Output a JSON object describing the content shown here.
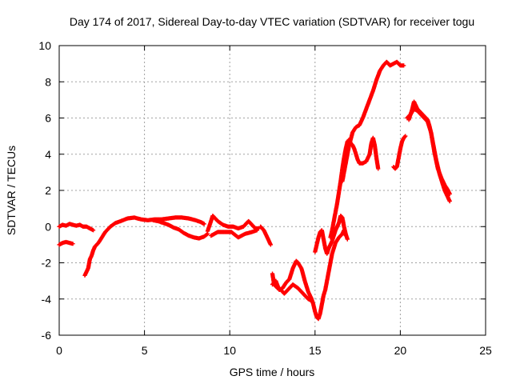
{
  "chart_data": {
    "type": "scatter",
    "title": "Day 174 of 2017, Sidereal Day-to-day VTEC variation (SDTVAR) for receiver togu",
    "xlabel": "GPS time / hours",
    "ylabel": "SDTVAR / TECUs",
    "xlim": [
      0,
      25
    ],
    "ylim": [
      -6,
      10
    ],
    "xticks": [
      0,
      5,
      10,
      15,
      20,
      25
    ],
    "yticks": [
      -6,
      -4,
      -2,
      0,
      2,
      4,
      6,
      8,
      10
    ],
    "grid": true,
    "marker": "plus",
    "color": "#ff0000",
    "segments": [
      [
        [
          0.0,
          -1.0
        ],
        [
          0.2,
          -0.9
        ],
        [
          0.4,
          -0.85
        ],
        [
          0.6,
          -0.9
        ],
        [
          0.8,
          -0.95
        ]
      ],
      [
        [
          0.0,
          0.0
        ],
        [
          0.2,
          0.1
        ],
        [
          0.4,
          0.05
        ],
        [
          0.6,
          0.15
        ],
        [
          0.8,
          0.1
        ],
        [
          1.0,
          0.05
        ],
        [
          1.2,
          0.1
        ],
        [
          1.4,
          0.0
        ],
        [
          1.6,
          0.0
        ],
        [
          1.8,
          -0.1
        ],
        [
          2.0,
          -0.2
        ]
      ],
      [
        [
          1.5,
          -2.7
        ],
        [
          1.6,
          -2.5
        ],
        [
          1.7,
          -2.3
        ],
        [
          1.8,
          -1.8
        ],
        [
          1.9,
          -1.6
        ],
        [
          2.0,
          -1.3
        ],
        [
          2.1,
          -1.1
        ],
        [
          2.3,
          -0.9
        ],
        [
          2.5,
          -0.6
        ],
        [
          2.7,
          -0.3
        ],
        [
          3.0,
          0.0
        ],
        [
          3.3,
          0.2
        ],
        [
          3.6,
          0.3
        ],
        [
          4.0,
          0.45
        ],
        [
          4.4,
          0.5
        ],
        [
          4.8,
          0.4
        ],
        [
          5.2,
          0.35
        ],
        [
          5.6,
          0.4
        ],
        [
          6.0,
          0.4
        ],
        [
          6.4,
          0.45
        ],
        [
          6.8,
          0.5
        ],
        [
          7.2,
          0.5
        ],
        [
          7.6,
          0.45
        ],
        [
          8.0,
          0.35
        ],
        [
          8.3,
          0.25
        ],
        [
          8.5,
          0.15
        ]
      ],
      [
        [
          5.5,
          0.35
        ],
        [
          5.8,
          0.3
        ],
        [
          6.1,
          0.2
        ],
        [
          6.4,
          0.1
        ],
        [
          6.7,
          -0.05
        ],
        [
          7.0,
          -0.15
        ],
        [
          7.3,
          -0.35
        ],
        [
          7.6,
          -0.5
        ],
        [
          7.9,
          -0.6
        ],
        [
          8.2,
          -0.65
        ],
        [
          8.5,
          -0.55
        ],
        [
          8.7,
          -0.4
        ]
      ],
      [
        [
          8.7,
          -0.25
        ],
        [
          8.9,
          0.3
        ],
        [
          9.0,
          0.6
        ],
        [
          9.1,
          0.5
        ],
        [
          9.3,
          0.3
        ],
        [
          9.6,
          0.1
        ],
        [
          9.9,
          0.0
        ],
        [
          10.2,
          0.0
        ],
        [
          10.5,
          -0.1
        ],
        [
          10.8,
          0.0
        ],
        [
          11.0,
          0.2
        ],
        [
          11.1,
          0.3
        ],
        [
          11.3,
          0.1
        ],
        [
          11.5,
          -0.1
        ],
        [
          11.7,
          -0.1
        ]
      ],
      [
        [
          8.9,
          -0.5
        ],
        [
          9.3,
          -0.3
        ],
        [
          9.7,
          -0.3
        ],
        [
          10.1,
          -0.3
        ],
        [
          10.5,
          -0.6
        ],
        [
          10.9,
          -0.4
        ],
        [
          11.3,
          -0.3
        ],
        [
          11.6,
          -0.2
        ]
      ],
      [
        [
          11.8,
          0.0
        ],
        [
          12.0,
          -0.2
        ],
        [
          12.2,
          -0.6
        ],
        [
          12.4,
          -1.0
        ]
      ],
      [
        [
          12.5,
          -2.6
        ],
        [
          12.6,
          -3.2
        ],
        [
          12.8,
          -3.4
        ],
        [
          13.0,
          -3.5
        ],
        [
          13.2,
          -3.7
        ],
        [
          13.5,
          -3.4
        ],
        [
          13.7,
          -3.2
        ],
        [
          14.0,
          -3.4
        ],
        [
          14.2,
          -3.6
        ],
        [
          14.4,
          -3.8
        ],
        [
          14.6,
          -4.0
        ],
        [
          14.8,
          -4.1
        ]
      ],
      [
        [
          12.5,
          -3.2
        ],
        [
          12.7,
          -3.0
        ],
        [
          12.9,
          -3.5
        ],
        [
          13.1,
          -3.4
        ],
        [
          13.3,
          -3.1
        ],
        [
          13.5,
          -2.9
        ],
        [
          13.6,
          -2.6
        ],
        [
          13.7,
          -2.3
        ],
        [
          13.8,
          -2.1
        ],
        [
          13.9,
          -1.9
        ],
        [
          14.0,
          -2.0
        ],
        [
          14.2,
          -2.3
        ],
        [
          14.4,
          -3.0
        ],
        [
          14.6,
          -3.6
        ],
        [
          14.8,
          -4.0
        ],
        [
          14.9,
          -4.3
        ],
        [
          15.0,
          -4.7
        ],
        [
          15.1,
          -5.0
        ],
        [
          15.2,
          -5.1
        ],
        [
          15.3,
          -4.8
        ],
        [
          15.4,
          -4.3
        ],
        [
          15.5,
          -3.8
        ],
        [
          15.6,
          -3.5
        ],
        [
          15.7,
          -3.0
        ],
        [
          15.8,
          -2.5
        ],
        [
          15.9,
          -2.0
        ],
        [
          16.0,
          -1.5
        ],
        [
          16.1,
          -1.2
        ],
        [
          16.2,
          -0.9
        ],
        [
          16.4,
          -0.6
        ],
        [
          16.6,
          -0.4
        ],
        [
          16.7,
          -0.2
        ],
        [
          16.8,
          -0.5
        ]
      ],
      [
        [
          15.0,
          -1.4
        ],
        [
          15.1,
          -1.0
        ],
        [
          15.2,
          -0.6
        ],
        [
          15.3,
          -0.3
        ],
        [
          15.4,
          -0.2
        ],
        [
          15.5,
          -0.7
        ],
        [
          15.6,
          -1.2
        ],
        [
          15.7,
          -1.5
        ],
        [
          15.8,
          -1.2
        ],
        [
          15.9,
          -1.0
        ],
        [
          16.0,
          -0.8
        ],
        [
          16.1,
          -0.5
        ],
        [
          16.2,
          -0.2
        ],
        [
          16.3,
          0.0
        ],
        [
          16.4,
          0.2
        ],
        [
          16.5,
          0.6
        ],
        [
          16.6,
          0.5
        ],
        [
          16.7,
          0.0
        ],
        [
          16.8,
          -0.4
        ],
        [
          16.9,
          -0.7
        ]
      ],
      [
        [
          15.9,
          -0.6
        ],
        [
          16.0,
          -0.2
        ],
        [
          16.1,
          0.3
        ],
        [
          16.2,
          0.8
        ],
        [
          16.3,
          1.3
        ],
        [
          16.4,
          1.9
        ],
        [
          16.5,
          2.5
        ],
        [
          16.6,
          3.2
        ],
        [
          16.7,
          3.8
        ],
        [
          16.8,
          4.3
        ],
        [
          16.9,
          4.7
        ],
        [
          17.0,
          4.8
        ],
        [
          17.1,
          4.6
        ],
        [
          17.2,
          4.5
        ],
        [
          17.3,
          4.3
        ],
        [
          17.4,
          4.0
        ],
        [
          17.5,
          3.7
        ],
        [
          17.6,
          3.5
        ],
        [
          17.8,
          3.5
        ],
        [
          18.0,
          3.6
        ],
        [
          18.2,
          4.0
        ],
        [
          18.3,
          4.6
        ],
        [
          18.4,
          4.9
        ],
        [
          18.5,
          4.5
        ],
        [
          18.6,
          3.8
        ],
        [
          18.7,
          3.2
        ]
      ],
      [
        [
          16.6,
          2.5
        ],
        [
          16.8,
          3.5
        ],
        [
          17.0,
          4.5
        ],
        [
          17.2,
          5.2
        ],
        [
          17.4,
          5.5
        ],
        [
          17.6,
          5.6
        ],
        [
          17.8,
          6.0
        ],
        [
          18.0,
          6.5
        ],
        [
          18.2,
          7.0
        ],
        [
          18.4,
          7.5
        ],
        [
          18.6,
          8.1
        ],
        [
          18.8,
          8.6
        ],
        [
          19.0,
          8.9
        ],
        [
          19.2,
          9.1
        ],
        [
          19.4,
          8.9
        ],
        [
          19.6,
          9.0
        ],
        [
          19.8,
          9.1
        ],
        [
          20.0,
          8.9
        ],
        [
          20.2,
          8.9
        ]
      ],
      [
        [
          19.6,
          3.3
        ],
        [
          19.7,
          3.2
        ],
        [
          19.8,
          3.3
        ],
        [
          19.9,
          3.8
        ],
        [
          20.0,
          4.3
        ],
        [
          20.1,
          4.7
        ],
        [
          20.2,
          4.9
        ],
        [
          20.3,
          5.0
        ]
      ],
      [
        [
          20.5,
          5.9
        ],
        [
          20.6,
          6.2
        ],
        [
          20.7,
          6.5
        ],
        [
          20.8,
          6.9
        ],
        [
          20.9,
          6.7
        ],
        [
          21.0,
          6.5
        ],
        [
          21.2,
          6.3
        ],
        [
          21.4,
          6.1
        ],
        [
          21.6,
          5.9
        ],
        [
          21.7,
          5.6
        ],
        [
          21.8,
          5.2
        ],
        [
          21.9,
          4.7
        ],
        [
          22.0,
          4.2
        ],
        [
          22.1,
          3.7
        ],
        [
          22.2,
          3.3
        ],
        [
          22.3,
          2.9
        ],
        [
          22.4,
          2.6
        ],
        [
          22.5,
          2.3
        ],
        [
          22.6,
          2.0
        ],
        [
          22.7,
          1.8
        ],
        [
          22.8,
          1.6
        ],
        [
          22.9,
          1.4
        ]
      ],
      [
        [
          20.4,
          6.0
        ],
        [
          20.6,
          6.2
        ],
        [
          20.8,
          6.5
        ],
        [
          21.0,
          6.4
        ],
        [
          21.2,
          6.2
        ],
        [
          21.4,
          6.0
        ],
        [
          21.6,
          5.8
        ],
        [
          21.8,
          5.2
        ],
        [
          22.0,
          4.1
        ],
        [
          22.2,
          3.2
        ],
        [
          22.4,
          2.7
        ],
        [
          22.6,
          2.3
        ],
        [
          22.8,
          2.0
        ],
        [
          22.9,
          1.8
        ]
      ]
    ]
  }
}
